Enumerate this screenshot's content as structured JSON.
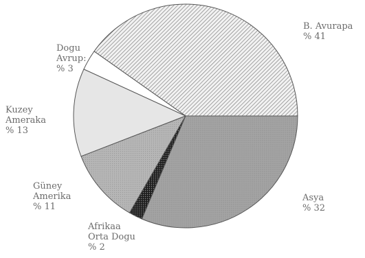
{
  "chart_data": {
    "type": "pie",
    "title": "",
    "start_angle_deg": 0,
    "direction": "counterclockwise",
    "slices": [
      {
        "lines": [
          "B. Avurapa",
          "% 41"
        ],
        "value": 41,
        "pattern": "diag-hatch"
      },
      {
        "lines": [
          "Dogu",
          "Avrup:",
          "% 3"
        ],
        "value": 3,
        "pattern": "white"
      },
      {
        "lines": [
          "Kuzey",
          "Ameraka",
          "% 13"
        ],
        "value": 13,
        "pattern": "light-gray"
      },
      {
        "lines": [
          "Güney",
          "Amerika",
          "% 11"
        ],
        "value": 11,
        "pattern": "medium-gray"
      },
      {
        "lines": [
          "Afrikaa",
          "Orta Dogu",
          "% 2"
        ],
        "value": 2,
        "pattern": "dark-dots"
      },
      {
        "lines": [
          "Asya",
          "% 32"
        ],
        "value": 32,
        "pattern": "fine-gray"
      }
    ],
    "colors": {
      "outline": "#555555",
      "light-gray": "#e6e6e6",
      "medium-gray": "#b4b4b4",
      "fine-gray": "#9e9e9e",
      "dark-dots": "#2a2a2a",
      "hatch": "#7a7a7a"
    }
  }
}
